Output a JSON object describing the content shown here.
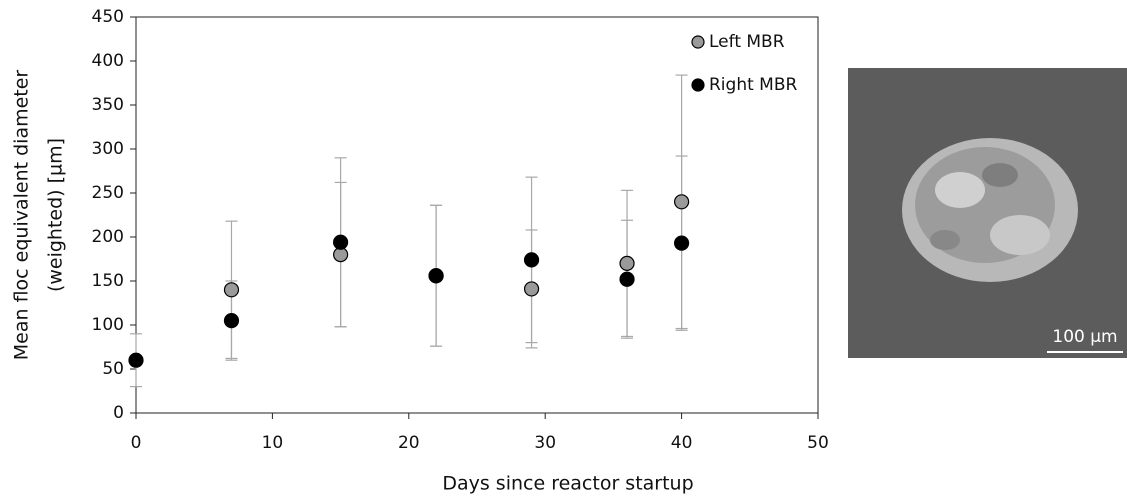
{
  "chart_data": {
    "type": "scatter",
    "xlabel": "Days since reactor startup",
    "ylabel": [
      "Mean floc equivalent diameter",
      "(weighted)  [µm]"
    ],
    "x": [
      0,
      7,
      15,
      22,
      29,
      36,
      40
    ],
    "series": [
      {
        "name": "Left MBR",
        "color": "#9a9a9a",
        "values": [
          null,
          140,
          180,
          156,
          141,
          170,
          240
        ],
        "errors": [
          null,
          78,
          82,
          80,
          67,
          83,
          144
        ]
      },
      {
        "name": "Right MBR",
        "color": "#000000",
        "values": [
          60,
          105,
          194,
          156,
          174,
          152,
          193
        ],
        "errors": [
          30,
          45,
          96,
          80,
          94,
          67,
          99
        ]
      }
    ],
    "xlim": [
      0,
      50
    ],
    "xticks": [
      0,
      10,
      20,
      30,
      40,
      50
    ],
    "ylim": [
      0,
      450
    ],
    "yticks": [
      0,
      50,
      100,
      150,
      200,
      250,
      300,
      350,
      400,
      450
    ],
    "grid": false,
    "legend": "upper right"
  },
  "image": {
    "scale_label": "100 µm"
  }
}
